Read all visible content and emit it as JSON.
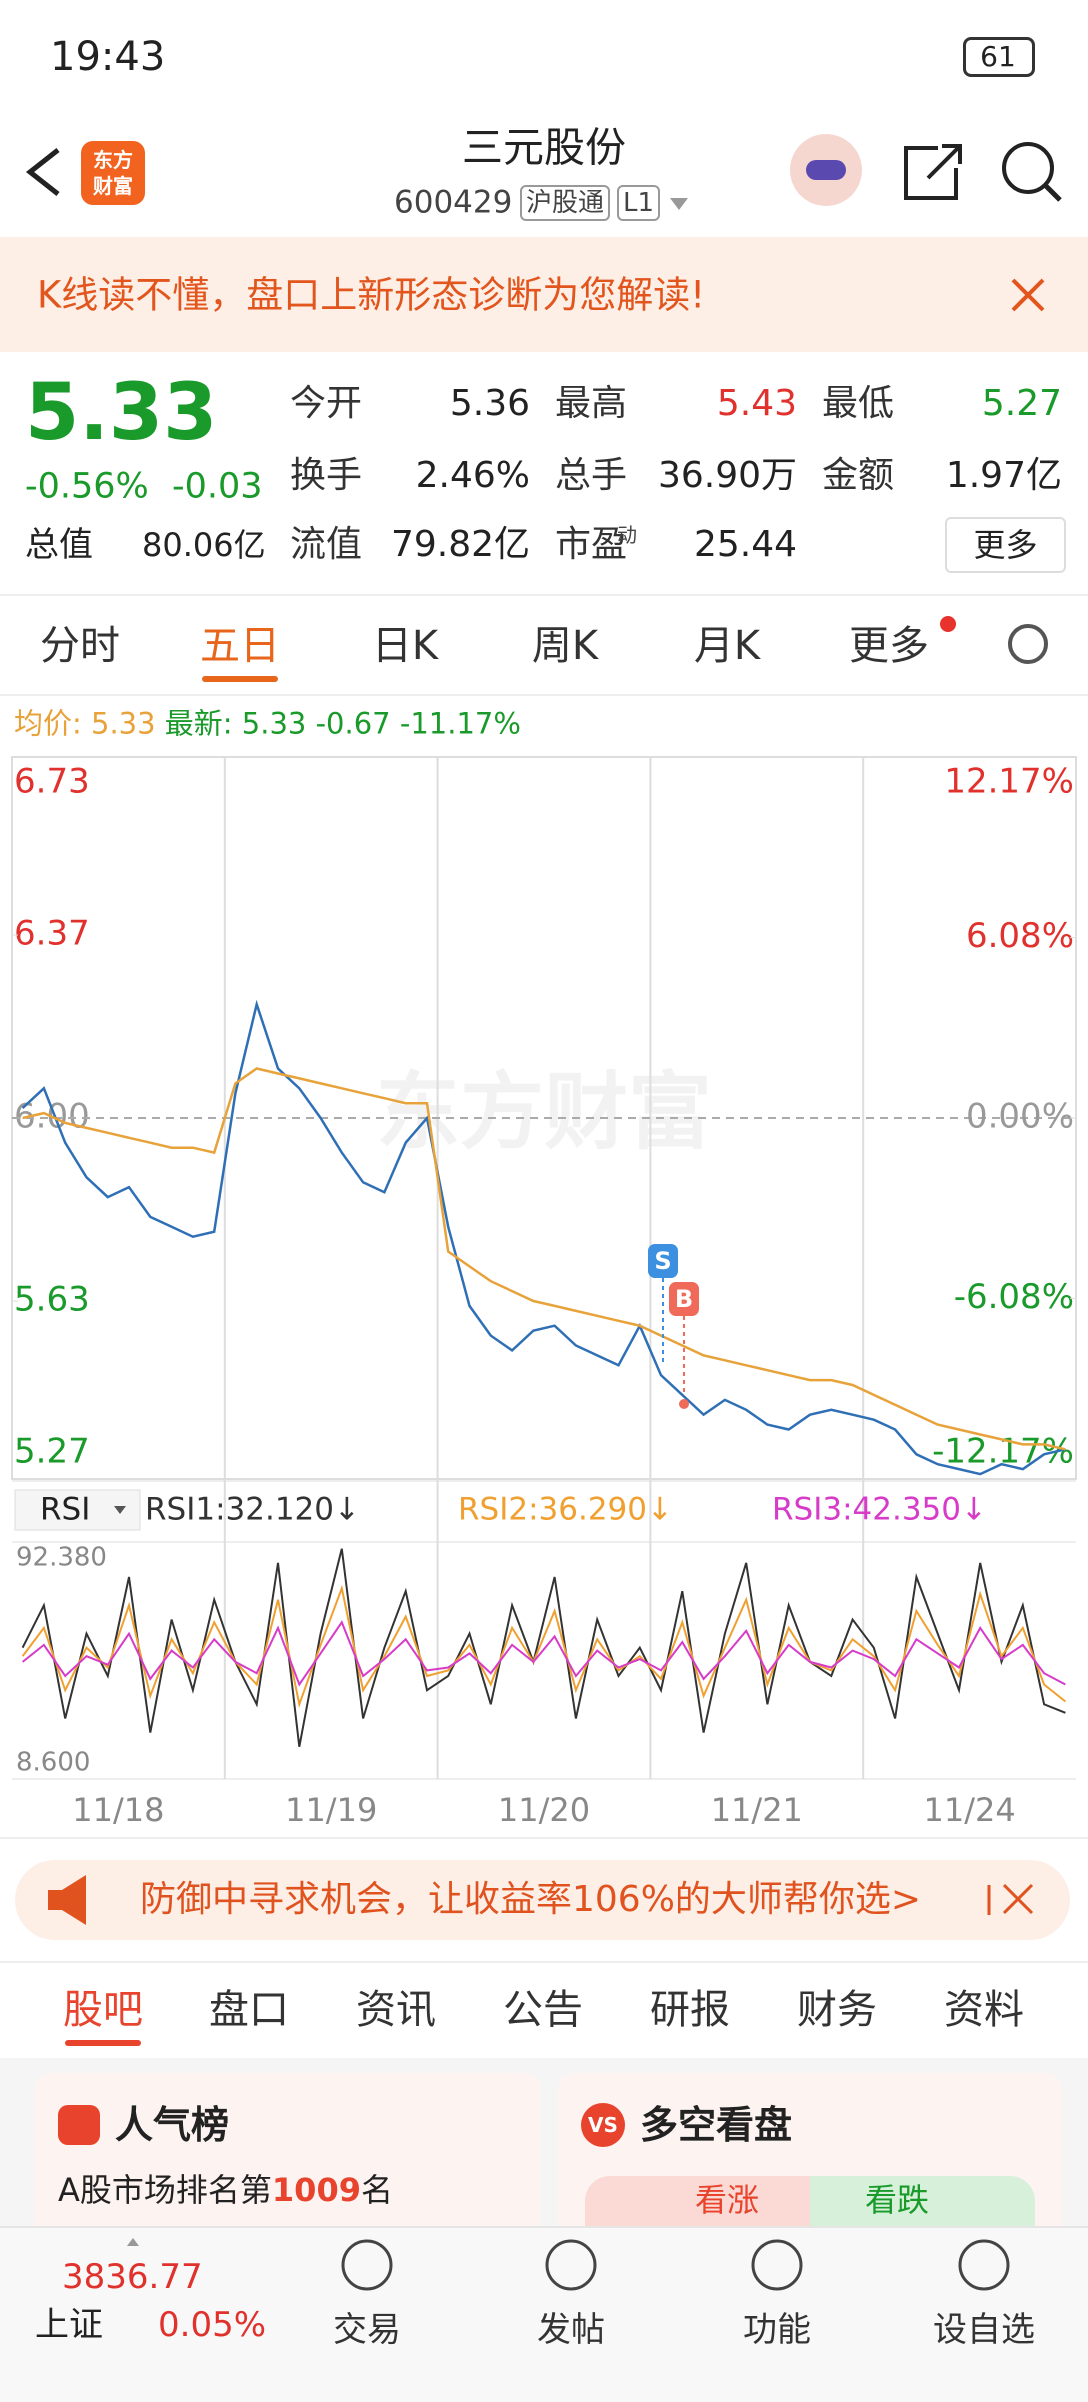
{
  "status_bar": {
    "time": "19:43",
    "battery": "61"
  },
  "header": {
    "logo": [
      "东方",
      "财富"
    ],
    "title": "三元股份",
    "code": "600429",
    "badge": "沪股通",
    "level": "L1"
  },
  "banner": {
    "text": "K线读不懂，盘口上新形态诊断为您解读!"
  },
  "quote": {
    "price": "5.33",
    "change_pct": "-0.56%",
    "change": "-0.03",
    "total_value_label": "总值",
    "total_value": "80.06亿",
    "fields": [
      {
        "label": "今开",
        "value": "5.36"
      },
      {
        "label": "最高",
        "value": "5.43"
      },
      {
        "label": "最低",
        "value": "5.27"
      },
      {
        "label": "换手",
        "value": "2.46%"
      },
      {
        "label": "总手",
        "value": "36.90万"
      },
      {
        "label": "金额",
        "value": "1.97亿"
      },
      {
        "label": "流值",
        "value": "79.82亿"
      },
      {
        "label": "市盈",
        "value": "25.44"
      }
    ],
    "pe_sup": "动",
    "more": "更多"
  },
  "tabs": {
    "items": [
      "分时",
      "五日",
      "日K",
      "周K",
      "月K",
      "更多"
    ],
    "active": 1
  },
  "legend": {
    "avg": "5.33",
    "price": "5.33",
    "change": "-0.67",
    "change_pct": "-11.17%"
  },
  "chart_data": [
    {
      "type": "line",
      "watermark": "东方财富",
      "ylim": [
        5.27,
        6.73
      ],
      "yticks": [
        6.73,
        6.37,
        {
          "value": 6,
          "label": "6.00"
        },
        5.63,
        5.27
      ],
      "y2lim": [
        -12.17,
        12.17
      ],
      "y2ticks": [
        {
          "value": 12.17,
          "label": "12.17%"
        },
        {
          "value": 6.08,
          "label": "6.08%"
        },
        {
          "value": 0,
          "label": "0.00%"
        },
        {
          "value": -6.08,
          "label": "-6.08%"
        },
        {
          "value": -12.17,
          "label": "-12.17%"
        }
      ],
      "series": [
        {
          "name": "最新:",
          "color": "#2f6fb5",
          "values": [
            6.02,
            6.06,
            5.95,
            5.88,
            5.84,
            5.86,
            5.8,
            5.78,
            5.76,
            5.77,
            6.05,
            6.23,
            6.1,
            6.06,
            6.0,
            5.93,
            5.87,
            5.85,
            5.95,
            6.0,
            5.78,
            5.62,
            5.56,
            5.53,
            5.57,
            5.58,
            5.54,
            5.52,
            5.5,
            5.58,
            5.48,
            5.44,
            5.4,
            5.43,
            5.41,
            5.38,
            5.37,
            5.4,
            5.41,
            5.4,
            5.39,
            5.37,
            5.32,
            5.3,
            5.29,
            5.28,
            5.3,
            5.29,
            5.32,
            5.33
          ]
        },
        {
          "name": "均价:",
          "color": "#e8a23a",
          "values": [
            6.0,
            6.01,
            5.99,
            5.98,
            5.97,
            5.96,
            5.95,
            5.94,
            5.94,
            5.93,
            6.07,
            6.1,
            6.09,
            6.08,
            6.07,
            6.06,
            6.05,
            6.04,
            6.03,
            6.03,
            5.73,
            5.7,
            5.67,
            5.65,
            5.63,
            5.62,
            5.61,
            5.6,
            5.59,
            5.58,
            5.56,
            5.54,
            5.52,
            5.51,
            5.5,
            5.49,
            5.48,
            5.47,
            5.47,
            5.46,
            5.44,
            5.42,
            5.4,
            5.38,
            5.37,
            5.36,
            5.35,
            5.34,
            5.34,
            5.33
          ]
        }
      ],
      "markers": [
        {
          "label": "S",
          "color": "#3d8fe0"
        },
        {
          "label": "B",
          "color": "#f06a5a"
        }
      ]
    },
    {
      "type": "line",
      "selector": "RSI",
      "ylim": [
        8.6,
        92.38
      ],
      "yticks": [
        {
          "value": 92.38,
          "label": "92.380"
        },
        {
          "value": 8.6,
          "label": "8.600"
        }
      ],
      "series": [
        {
          "name": "RSI1:32.120↓",
          "color": "#333333",
          "values": [
            55,
            70,
            30,
            60,
            45,
            80,
            25,
            65,
            40,
            72,
            50,
            35,
            85,
            20,
            60,
            90,
            30,
            55,
            75,
            40,
            45,
            60,
            35,
            70,
            50,
            80,
            30,
            65,
            45,
            55,
            40,
            75,
            25,
            60,
            85,
            35,
            70,
            50,
            45,
            65,
            55,
            30,
            80,
            60,
            40,
            85,
            50,
            70,
            35,
            32
          ]
        },
        {
          "name": "RSI2:36.290↓",
          "color": "#f0a030",
          "values": [
            52,
            62,
            40,
            55,
            48,
            70,
            38,
            58,
            46,
            64,
            50,
            42,
            72,
            35,
            56,
            76,
            40,
            52,
            66,
            45,
            47,
            56,
            42,
            62,
            50,
            68,
            40,
            58,
            47,
            52,
            44,
            64,
            38,
            55,
            72,
            42,
            62,
            50,
            47,
            58,
            52,
            40,
            68,
            56,
            45,
            74,
            52,
            62,
            42,
            36
          ]
        },
        {
          "name": "RSI3:42.350↓",
          "color": "#d63cc8",
          "values": [
            50,
            56,
            45,
            52,
            49,
            60,
            44,
            54,
            48,
            58,
            50,
            46,
            62,
            42,
            53,
            64,
            45,
            51,
            58,
            47,
            48,
            53,
            46,
            56,
            50,
            59,
            45,
            54,
            48,
            51,
            47,
            57,
            44,
            52,
            61,
            46,
            56,
            50,
            48,
            54,
            51,
            45,
            58,
            53,
            48,
            62,
            51,
            56,
            46,
            42
          ]
        }
      ],
      "x_labels": [
        "11/18",
        "11/19",
        "11/20",
        "11/21",
        "11/24"
      ]
    }
  ],
  "promo": {
    "text": "防御中寻求机会，让收益率106%的大师帮你选>"
  },
  "sections": {
    "items": [
      "股吧",
      "盘口",
      "资讯",
      "公告",
      "研报",
      "财务",
      "资料"
    ],
    "active": 0
  },
  "cards": {
    "popularity": {
      "title": "人气榜",
      "text_before": "A股市场排名第",
      "rank": "1009",
      "text_after": "名"
    },
    "sentiment": {
      "icon": "VS",
      "title": "多空看盘",
      "up": "看涨",
      "down": "看跌"
    }
  },
  "nav": {
    "index_value": "3836.77",
    "index_name": "上证",
    "index_change": "0.05%",
    "items": [
      "交易",
      "发帖",
      "功能",
      "设自选"
    ]
  }
}
